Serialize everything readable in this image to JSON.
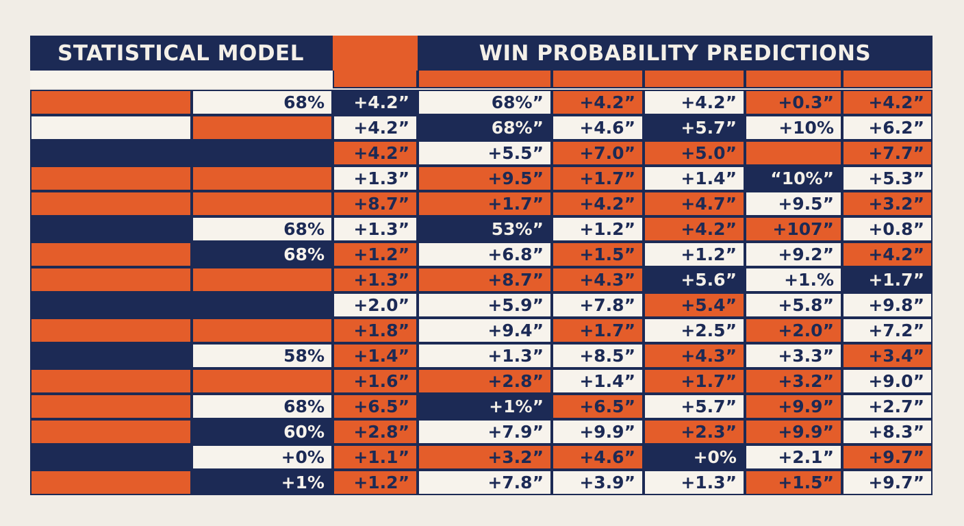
{
  "header": {
    "left_title": "STATISTICAL MODEL",
    "right_title": "WIN PROBABILITY PREDICTIONS"
  },
  "colors": {
    "orange": "#e45d2a",
    "navy": "#1c2a55",
    "cream": "#f7f3ec",
    "background": "#f1ede6"
  },
  "rows": [
    {
      "model": {
        "bar": "orange",
        "label": "68%",
        "label_bg": "cream"
      },
      "cells": [
        [
          "+4.2”",
          "n"
        ],
        [
          "68%”",
          "w"
        ],
        [
          "+4.2”",
          "o"
        ],
        [
          "+4.2”",
          "w"
        ],
        [
          "+0.3”",
          "o"
        ],
        [
          "+4.2”",
          "o"
        ]
      ]
    },
    {
      "model": {
        "bar": "cream",
        "label": "",
        "label_bg": "orange"
      },
      "cells": [
        [
          "+4.2”",
          "w"
        ],
        [
          "68%”",
          "n"
        ],
        [
          "+4.6”",
          "w"
        ],
        [
          "+5.7”",
          "n"
        ],
        [
          "+10%",
          "w"
        ],
        [
          "+6.2”",
          "w"
        ]
      ]
    },
    {
      "model": {
        "bar": "navy",
        "label": "",
        "label_bg": "navy"
      },
      "cells": [
        [
          "+4.2”",
          "o"
        ],
        [
          "+5.5”",
          "w"
        ],
        [
          "+7.0”",
          "o"
        ],
        [
          "+5.0”",
          "o"
        ],
        [
          "",
          "o"
        ],
        [
          "+7.7”",
          "o"
        ]
      ]
    },
    {
      "model": {
        "bar": "orange",
        "label": "",
        "label_bg": "orange"
      },
      "cells": [
        [
          "+1.3”",
          "w"
        ],
        [
          "+9.5”",
          "o"
        ],
        [
          "+1.7”",
          "o"
        ],
        [
          "+1.4”",
          "w"
        ],
        [
          "“10%”",
          "n"
        ],
        [
          "+5.3”",
          "w"
        ]
      ]
    },
    {
      "model": {
        "bar": "orange",
        "label": "",
        "label_bg": "orange"
      },
      "cells": [
        [
          "+8.7”",
          "o"
        ],
        [
          "+1.7”",
          "o"
        ],
        [
          "+4.2”",
          "o"
        ],
        [
          "+4.7”",
          "o"
        ],
        [
          "+9.5”",
          "w"
        ],
        [
          "+3.2”",
          "o"
        ]
      ]
    },
    {
      "model": {
        "bar": "navy",
        "label": "68%",
        "label_bg": "cream"
      },
      "cells": [
        [
          "+1.3”",
          "w"
        ],
        [
          "53%”",
          "n"
        ],
        [
          "+1.2”",
          "w"
        ],
        [
          "+4.2”",
          "o"
        ],
        [
          "+107”",
          "o"
        ],
        [
          "+0.8”",
          "w"
        ]
      ]
    },
    {
      "model": {
        "bar": "orange",
        "label": "68%",
        "label_bg": "navy"
      },
      "cells": [
        [
          "+1.2”",
          "o"
        ],
        [
          "+6.8”",
          "w"
        ],
        [
          "+1.5”",
          "o"
        ],
        [
          "+1.2”",
          "w"
        ],
        [
          "+9.2”",
          "w"
        ],
        [
          "+4.2”",
          "o"
        ]
      ]
    },
    {
      "model": {
        "bar": "orange",
        "label": "",
        "label_bg": "orange"
      },
      "cells": [
        [
          "+1.3”",
          "o"
        ],
        [
          "+8.7”",
          "o"
        ],
        [
          "+4.3”",
          "o"
        ],
        [
          "+5.6”",
          "n"
        ],
        [
          "+1.%",
          "w"
        ],
        [
          "+1.7”",
          "n"
        ]
      ]
    },
    {
      "model": {
        "bar": "navy",
        "label": "",
        "label_bg": "navy"
      },
      "cells": [
        [
          "+2.0”",
          "w"
        ],
        [
          "+5.9”",
          "w"
        ],
        [
          "+7.8”",
          "w"
        ],
        [
          "+5.4”",
          "o"
        ],
        [
          "+5.8”",
          "w"
        ],
        [
          "+9.8”",
          "w"
        ]
      ]
    },
    {
      "model": {
        "bar": "orange",
        "label": "",
        "label_bg": "orange"
      },
      "cells": [
        [
          "+1.8”",
          "o"
        ],
        [
          "+9.4”",
          "w"
        ],
        [
          "+1.7”",
          "o"
        ],
        [
          "+2.5”",
          "w"
        ],
        [
          "+2.0”",
          "o"
        ],
        [
          "+7.2”",
          "w"
        ]
      ]
    },
    {
      "model": {
        "bar": "navy",
        "label": "58%",
        "label_bg": "cream"
      },
      "cells": [
        [
          "+1.4”",
          "o"
        ],
        [
          "+1.3”",
          "w"
        ],
        [
          "+8.5”",
          "w"
        ],
        [
          "+4.3”",
          "o"
        ],
        [
          "+3.3”",
          "w"
        ],
        [
          "+3.4”",
          "o"
        ]
      ]
    },
    {
      "model": {
        "bar": "orange",
        "label": "",
        "label_bg": "orange"
      },
      "cells": [
        [
          "+1.6”",
          "o"
        ],
        [
          "+2.8”",
          "o"
        ],
        [
          "+1.4”",
          "w"
        ],
        [
          "+1.7”",
          "o"
        ],
        [
          "+3.2”",
          "o"
        ],
        [
          "+9.0”",
          "w"
        ]
      ]
    },
    {
      "model": {
        "bar": "orange",
        "label": "68%",
        "label_bg": "cream"
      },
      "cells": [
        [
          "+6.5”",
          "o"
        ],
        [
          "+1%”",
          "n"
        ],
        [
          "+6.5”",
          "o"
        ],
        [
          "+5.7”",
          "w"
        ],
        [
          "+9.9”",
          "o"
        ],
        [
          "+2.7”",
          "w"
        ]
      ]
    },
    {
      "model": {
        "bar": "orange",
        "label": "60%",
        "label_bg": "navy"
      },
      "cells": [
        [
          "+2.8”",
          "o"
        ],
        [
          "+7.9”",
          "w"
        ],
        [
          "+9.9”",
          "w"
        ],
        [
          "+2.3”",
          "o"
        ],
        [
          "+9.9”",
          "o"
        ],
        [
          "+8.3”",
          "w"
        ]
      ]
    },
    {
      "model": {
        "bar": "navy",
        "label": "+0%",
        "label_bg": "cream"
      },
      "cells": [
        [
          "+1.1”",
          "o"
        ],
        [
          "+3.2”",
          "o"
        ],
        [
          "+4.6”",
          "o"
        ],
        [
          "+0%",
          "n"
        ],
        [
          "+2.1”",
          "w"
        ],
        [
          "+9.7”",
          "o"
        ]
      ]
    },
    {
      "model": {
        "bar": "orange",
        "label": "+1%",
        "label_bg": "navy"
      },
      "cells": [
        [
          "+1.2”",
          "o"
        ],
        [
          "+7.8”",
          "w"
        ],
        [
          "+3.9”",
          "w"
        ],
        [
          "+1.3”",
          "w"
        ],
        [
          "+1.5”",
          "o"
        ],
        [
          "+9.7”",
          "w"
        ]
      ]
    }
  ]
}
